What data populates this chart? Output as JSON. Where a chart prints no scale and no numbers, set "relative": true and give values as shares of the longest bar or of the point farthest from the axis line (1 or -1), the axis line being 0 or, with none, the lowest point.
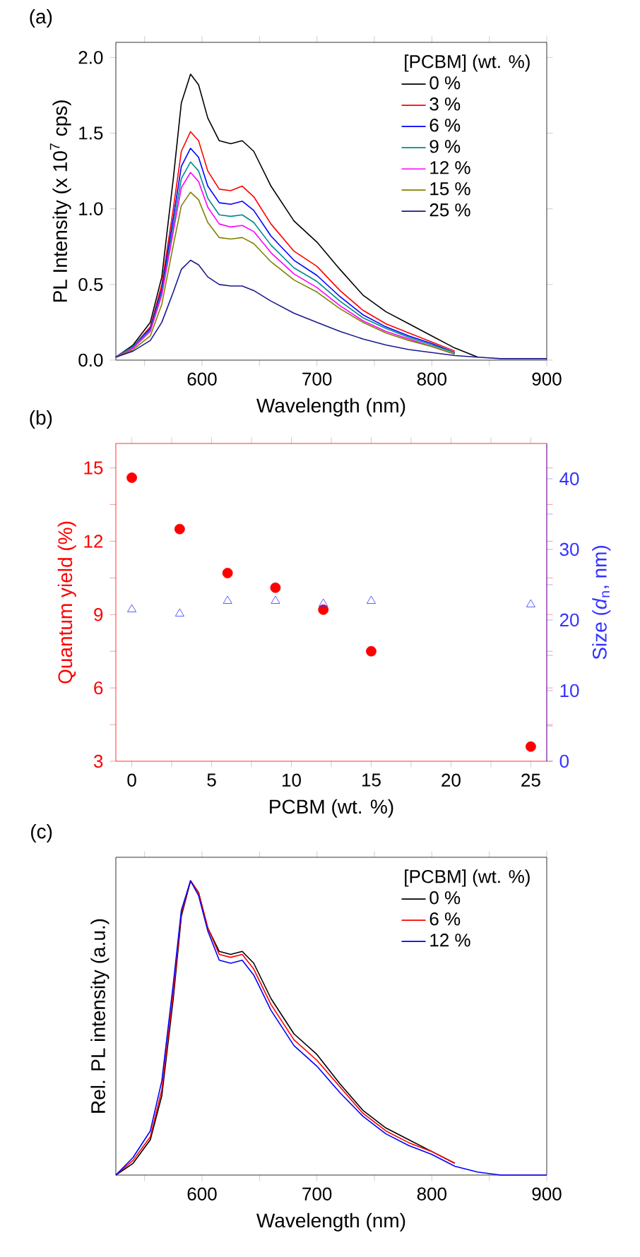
{
  "chart_data": [
    {
      "type": "line",
      "title": "(a)",
      "xlabel": "Wavelength (nm)",
      "ylabel": "PL Intensity (x 10$^{7}$ cps)",
      "legend_title": "[PCBM] (wt. %)",
      "legend": "top right",
      "xlim": [
        525,
        900
      ],
      "ylim": [
        0,
        2.1
      ],
      "xticks": [
        {
          "value": 550,
          "label": null
        },
        600,
        {
          "value": 650,
          "label": null
        },
        700,
        {
          "value": 750,
          "label": null
        },
        800,
        {
          "value": 850,
          "label": null
        },
        900
      ],
      "yticks": [
        {
          "value": 0,
          "label": "0.0"
        },
        0.5,
        {
          "value": 1,
          "label": "1.0"
        },
        1.5,
        {
          "value": 2,
          "label": "2.0"
        }
      ],
      "x": [
        525,
        540,
        555,
        565,
        575,
        582,
        590,
        597,
        605,
        615,
        625,
        635,
        645,
        660,
        680,
        700,
        720,
        740,
        760,
        780,
        800,
        820,
        840,
        860,
        880,
        900
      ],
      "series": [
        {
          "name": "0 %",
          "color": "#000000",
          "values": [
            0.02,
            0.1,
            0.25,
            0.55,
            1.2,
            1.7,
            1.89,
            1.82,
            1.6,
            1.45,
            1.43,
            1.45,
            1.38,
            1.15,
            0.92,
            0.78,
            0.6,
            0.43,
            0.32,
            0.24,
            0.16,
            0.08,
            0.02,
            null,
            null,
            null
          ]
        },
        {
          "name": "3 %",
          "color": "#ff0000",
          "values": [
            0.02,
            0.09,
            0.22,
            0.5,
            1.0,
            1.38,
            1.51,
            1.45,
            1.25,
            1.13,
            1.12,
            1.15,
            1.08,
            0.9,
            0.72,
            0.62,
            0.46,
            0.33,
            0.24,
            0.18,
            0.12,
            0.06,
            null,
            null,
            null,
            null
          ]
        },
        {
          "name": "6 %",
          "color": "#0000ff",
          "values": [
            0.02,
            0.09,
            0.21,
            0.47,
            0.94,
            1.28,
            1.4,
            1.34,
            1.15,
            1.04,
            1.03,
            1.05,
            0.99,
            0.82,
            0.66,
            0.56,
            0.42,
            0.3,
            0.22,
            0.16,
            0.11,
            0.05,
            null,
            null,
            null,
            null
          ]
        },
        {
          "name": "9 %",
          "color": "#008b8b",
          "values": [
            0.02,
            0.09,
            0.2,
            0.45,
            0.89,
            1.2,
            1.31,
            1.25,
            1.07,
            0.96,
            0.95,
            0.96,
            0.91,
            0.76,
            0.61,
            0.52,
            0.39,
            0.28,
            0.21,
            0.15,
            0.1,
            0.05,
            null,
            null,
            null,
            null
          ]
        },
        {
          "name": "12 %",
          "color": "#ff00ff",
          "values": [
            0.02,
            0.08,
            0.19,
            0.43,
            0.85,
            1.14,
            1.24,
            1.18,
            1.01,
            0.9,
            0.88,
            0.89,
            0.85,
            0.71,
            0.57,
            0.48,
            0.36,
            0.26,
            0.19,
            0.14,
            0.09,
            0.04,
            null,
            null,
            null,
            null
          ]
        },
        {
          "name": "15 %",
          "color": "#808000",
          "values": [
            0.02,
            0.07,
            0.16,
            0.37,
            0.76,
            1.02,
            1.11,
            1.06,
            0.91,
            0.81,
            0.8,
            0.81,
            0.77,
            0.65,
            0.53,
            0.45,
            0.34,
            0.25,
            0.18,
            0.13,
            0.09,
            0.04,
            null,
            null,
            null,
            null
          ]
        },
        {
          "name": "25 %",
          "color": "#1a1a8c",
          "values": [
            0.02,
            0.06,
            0.13,
            0.25,
            0.45,
            0.6,
            0.66,
            0.63,
            0.55,
            0.5,
            0.49,
            0.49,
            0.46,
            0.39,
            0.31,
            0.25,
            0.19,
            0.14,
            0.1,
            0.07,
            0.05,
            0.03,
            0.02,
            0.01,
            0.01,
            0.01
          ]
        }
      ]
    },
    {
      "type": "scatter",
      "title": "(b)",
      "xlabel": "PCBM (wt. %)",
      "ylabel": "Quantum yield (%)",
      "y2label": "Size (*d*$_{n}$, nm)",
      "xlim": [
        -1,
        26
      ],
      "ylim": [
        3,
        16
      ],
      "y2lim": [
        0,
        45
      ],
      "xticks": [
        0,
        {
          "value": 2.5,
          "label": null
        },
        5,
        {
          "value": 7.5,
          "label": null
        },
        10,
        {
          "value": 12.5,
          "label": null
        },
        15,
        {
          "value": 17.5,
          "label": null
        },
        20,
        {
          "value": 22.5,
          "label": null
        },
        25
      ],
      "yticks": [
        3,
        {
          "value": 4.5,
          "label": null
        },
        6,
        {
          "value": 7.5,
          "label": null
        },
        9,
        {
          "value": 10.5,
          "label": null
        },
        12,
        {
          "value": 13.5,
          "label": null
        },
        15
      ],
      "y2ticks": [
        0,
        {
          "value": 5,
          "label": null
        },
        10,
        {
          "value": 15,
          "label": null
        },
        20,
        {
          "value": 25,
          "label": null
        },
        30,
        {
          "value": 35,
          "label": null
        },
        40
      ],
      "x": [
        0,
        3,
        6,
        9,
        12,
        15,
        25
      ],
      "series": [
        {
          "color": "#ff0000",
          "marker": "circle",
          "values": [
            14.6,
            12.5,
            10.7,
            10.1,
            9.2,
            7.5,
            3.6
          ]
        },
        {
          "color": "#3333ff",
          "marker": "triangle",
          "axis": "y2",
          "values": [
            21.5,
            20.9,
            22.7,
            22.7,
            22.3,
            22.7,
            22.2
          ]
        }
      ]
    },
    {
      "type": "line",
      "title": "(c)",
      "xlabel": "Wavelength (nm)",
      "ylabel": "Rel. PL intensity (a.u.)",
      "legend_title": "[PCBM] (wt. %)",
      "legend": "top right",
      "relative": true,
      "tick_labels": "x",
      "xlim": [
        525,
        900
      ],
      "xticks": [
        {
          "value": 550,
          "label": null
        },
        600,
        {
          "value": 650,
          "label": null
        },
        700,
        {
          "value": 750,
          "label": null
        },
        800,
        {
          "value": 850,
          "label": null
        },
        900
      ],
      "x": [
        525,
        540,
        555,
        565,
        575,
        582,
        590,
        597,
        605,
        615,
        625,
        635,
        645,
        660,
        680,
        700,
        720,
        740,
        760,
        780,
        800,
        820,
        840,
        860,
        880,
        900
      ],
      "series": [
        {
          "name": "0 %",
          "color": "#000000",
          "values": [
            0.0,
            0.04,
            0.12,
            0.27,
            0.6,
            0.88,
            1.0,
            0.96,
            0.84,
            0.76,
            0.75,
            0.76,
            0.72,
            0.6,
            0.48,
            0.41,
            0.31,
            0.22,
            0.16,
            0.12,
            0.08,
            0.04,
            null,
            null,
            null,
            null
          ]
        },
        {
          "name": "6 %",
          "color": "#ff0000",
          "values": [
            0.0,
            0.05,
            0.13,
            0.29,
            0.62,
            0.89,
            1.0,
            0.96,
            0.84,
            0.75,
            0.74,
            0.75,
            0.7,
            0.58,
            0.46,
            0.39,
            0.3,
            0.21,
            0.15,
            0.11,
            0.08,
            0.04,
            null,
            null,
            null,
            null
          ]
        },
        {
          "name": "12 %",
          "color": "#0000ff",
          "values": [
            0.0,
            0.06,
            0.15,
            0.32,
            0.65,
            0.9,
            1.0,
            0.95,
            0.83,
            0.73,
            0.72,
            0.73,
            0.68,
            0.56,
            0.44,
            0.37,
            0.28,
            0.2,
            0.14,
            0.1,
            0.07,
            0.03,
            0.01,
            0.0,
            0.0,
            0.0
          ]
        }
      ]
    }
  ]
}
